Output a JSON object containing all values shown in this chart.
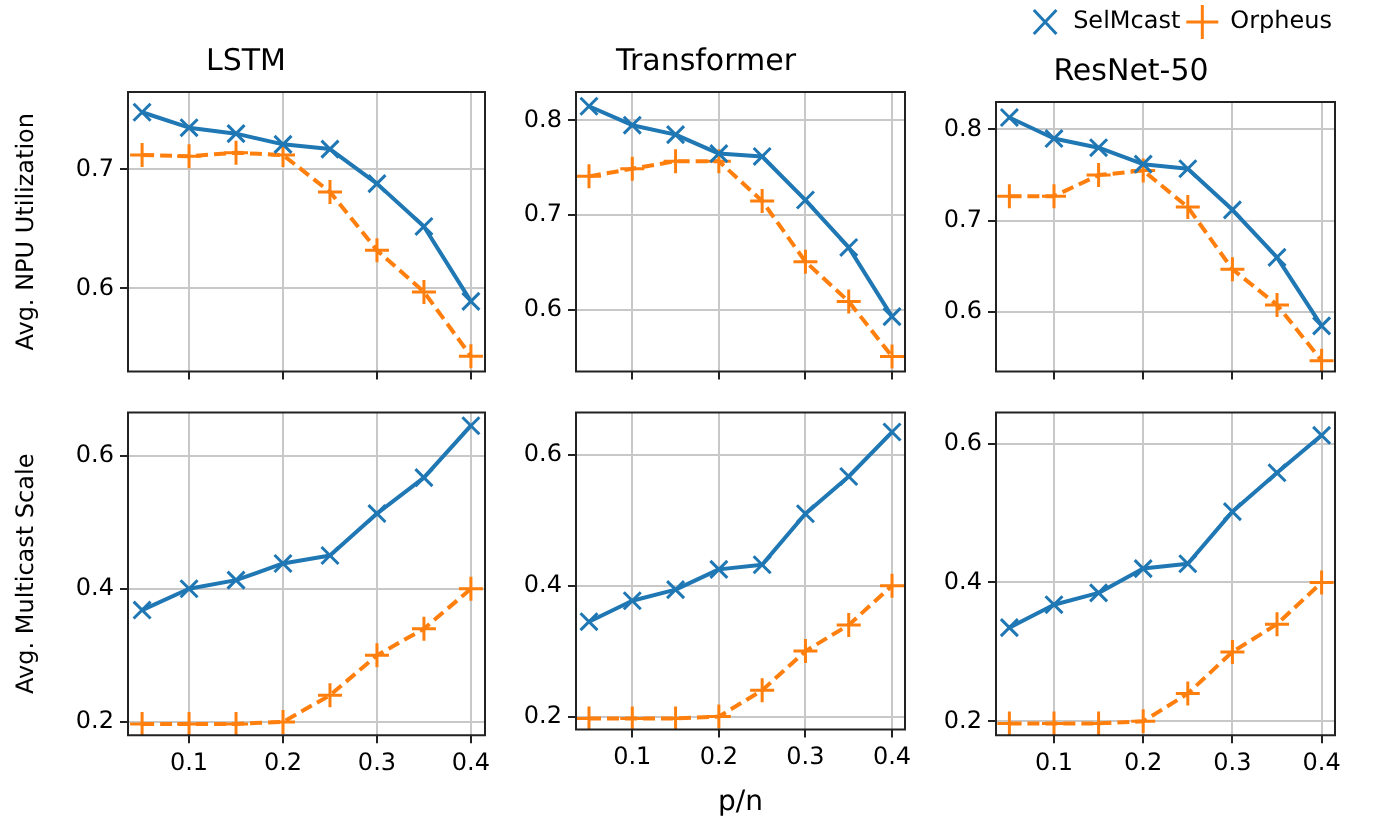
{
  "chart_data": [
    {
      "type": "line",
      "title": "LSTM",
      "ylabel": "Avg. NPU Utilization",
      "x": [
        0.05,
        0.1,
        0.15,
        0.2,
        0.25,
        0.3,
        0.35,
        0.4
      ],
      "xlim": [
        0.035,
        0.415
      ],
      "xticks": [
        0.1,
        0.2,
        0.3,
        0.4
      ],
      "ylim": [
        0.53,
        0.765
      ],
      "yticks": [
        0.6,
        0.7
      ],
      "grid": true,
      "tick_labels": "y",
      "series": [
        {
          "color": "#1f77b4",
          "marker": "cross",
          "line_style": "solid",
          "values": [
            0.748,
            0.735,
            0.73,
            0.721,
            0.717,
            0.688,
            0.652,
            0.589
          ]
        },
        {
          "color": "#ff7f0e",
          "marker": "plus",
          "line_style": "dashed",
          "values": [
            0.712,
            0.711,
            0.714,
            0.712,
            0.681,
            0.632,
            0.597,
            0.543
          ]
        }
      ]
    },
    {
      "type": "line",
      "title": "Transformer",
      "x": [
        0.05,
        0.1,
        0.15,
        0.2,
        0.25,
        0.3,
        0.35,
        0.4
      ],
      "xlim": [
        0.035,
        0.415
      ],
      "xticks": [
        0.1,
        0.2,
        0.3,
        0.4
      ],
      "ylim": [
        0.535,
        0.83
      ],
      "yticks": [
        0.6,
        0.7,
        0.8
      ],
      "grid": true,
      "tick_labels": "y",
      "series": [
        {
          "color": "#1f77b4",
          "marker": "cross",
          "line_style": "solid",
          "values": [
            0.815,
            0.795,
            0.785,
            0.765,
            0.762,
            0.716,
            0.666,
            0.593
          ]
        },
        {
          "color": "#ff7f0e",
          "marker": "plus",
          "line_style": "dashed",
          "values": [
            0.741,
            0.749,
            0.757,
            0.757,
            0.715,
            0.651,
            0.609,
            0.551
          ]
        }
      ]
    },
    {
      "type": "line",
      "title": "ResNet-50",
      "x": [
        0.05,
        0.1,
        0.15,
        0.2,
        0.25,
        0.3,
        0.35,
        0.4
      ],
      "xlim": [
        0.035,
        0.415
      ],
      "xticks": [
        0.1,
        0.2,
        0.3,
        0.4
      ],
      "ylim": [
        0.535,
        0.83
      ],
      "yticks": [
        0.6,
        0.7,
        0.8
      ],
      "grid": true,
      "tick_labels": "y",
      "legend": "top right",
      "series": [
        {
          "name": "SelMcast",
          "color": "#1f77b4",
          "marker": "cross",
          "line_style": "solid",
          "values": [
            0.813,
            0.79,
            0.78,
            0.762,
            0.757,
            0.712,
            0.66,
            0.585
          ]
        },
        {
          "name": "Orpheus",
          "color": "#ff7f0e",
          "marker": "plus",
          "line_style": "dashed",
          "values": [
            0.727,
            0.727,
            0.75,
            0.755,
            0.715,
            0.647,
            0.608,
            0.547
          ]
        }
      ]
    },
    {
      "type": "line",
      "ylabel": "Avg. Multicast Scale",
      "x": [
        0.05,
        0.1,
        0.15,
        0.2,
        0.25,
        0.3,
        0.35,
        0.4
      ],
      "xlim": [
        0.035,
        0.415
      ],
      "xticks": [
        0.1,
        0.2,
        0.3,
        0.4
      ],
      "ylim": [
        0.18,
        0.665
      ],
      "yticks": [
        0.2,
        0.4,
        0.6
      ],
      "grid": true,
      "series": [
        {
          "color": "#1f77b4",
          "marker": "cross",
          "line_style": "solid",
          "values": [
            0.368,
            0.4,
            0.413,
            0.438,
            0.45,
            0.513,
            0.567,
            0.645
          ]
        },
        {
          "color": "#ff7f0e",
          "marker": "plus",
          "line_style": "dashed",
          "values": [
            0.197,
            0.197,
            0.197,
            0.2,
            0.24,
            0.3,
            0.34,
            0.4
          ]
        }
      ]
    },
    {
      "type": "line",
      "xlabel": "p/n",
      "x": [
        0.05,
        0.1,
        0.15,
        0.2,
        0.25,
        0.3,
        0.35,
        0.4
      ],
      "xlim": [
        0.035,
        0.415
      ],
      "xticks": [
        0.1,
        0.2,
        0.3,
        0.4
      ],
      "ylim": [
        0.18,
        0.665
      ],
      "yticks": [
        0.2,
        0.4,
        0.6
      ],
      "grid": true,
      "series": [
        {
          "color": "#1f77b4",
          "marker": "cross",
          "line_style": "solid",
          "values": [
            0.345,
            0.377,
            0.394,
            0.425,
            0.432,
            0.51,
            0.567,
            0.635
          ]
        },
        {
          "color": "#ff7f0e",
          "marker": "plus",
          "line_style": "dashed",
          "values": [
            0.197,
            0.197,
            0.197,
            0.2,
            0.24,
            0.3,
            0.34,
            0.4
          ]
        }
      ]
    },
    {
      "type": "line",
      "x": [
        0.05,
        0.1,
        0.15,
        0.2,
        0.25,
        0.3,
        0.35,
        0.4
      ],
      "xlim": [
        0.035,
        0.415
      ],
      "xticks": [
        0.1,
        0.2,
        0.3,
        0.4
      ],
      "ylim": [
        0.18,
        0.645
      ],
      "yticks": [
        0.2,
        0.4,
        0.6
      ],
      "grid": true,
      "series": [
        {
          "color": "#1f77b4",
          "marker": "cross",
          "line_style": "solid",
          "values": [
            0.335,
            0.368,
            0.385,
            0.42,
            0.427,
            0.502,
            0.558,
            0.612
          ]
        },
        {
          "color": "#ff7f0e",
          "marker": "plus",
          "line_style": "dashed",
          "values": [
            0.197,
            0.197,
            0.197,
            0.2,
            0.24,
            0.3,
            0.34,
            0.4
          ]
        }
      ]
    }
  ]
}
